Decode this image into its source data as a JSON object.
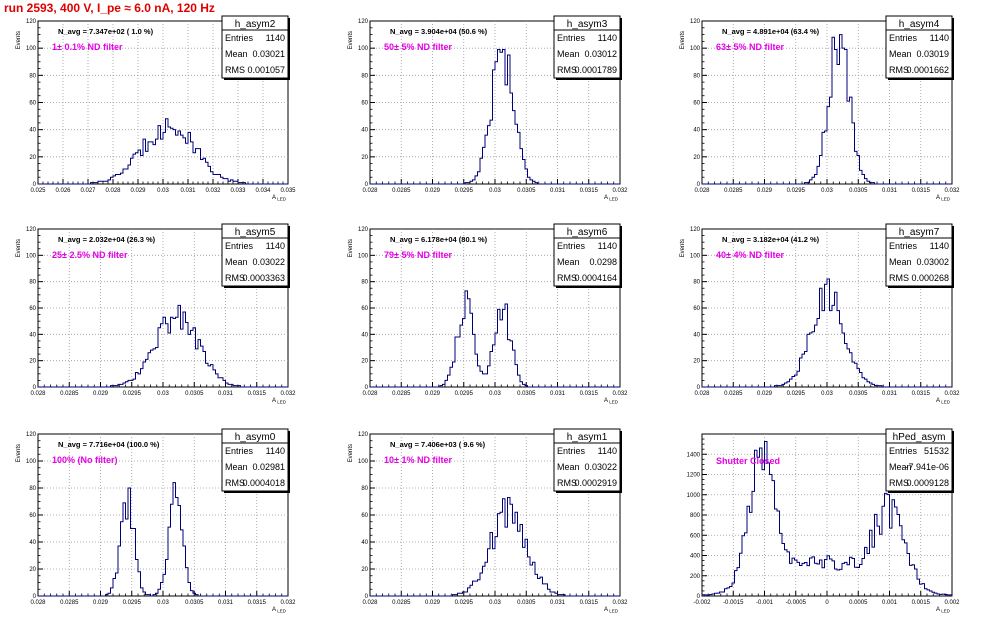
{
  "page": {
    "run_title": "run 2593,   400 V, I_pe ≈ 6.0 nA, 120 Hz"
  },
  "colors": {
    "histogram_line": "#00007a",
    "annotation": "#e600e6",
    "title": "#e00000",
    "grid": "#9a9a9a"
  },
  "chart_data": [
    {
      "type": "bar",
      "name": "h_asym2",
      "title": "h_asym2",
      "ylabel": "Events",
      "xlabel": "A_LED",
      "nf_text": "N_avg = 7.347e+02 ( 1.0 %)",
      "note": "1± 0.1% ND filter",
      "stats": [
        [
          "Entries",
          "1140"
        ],
        [
          "Mean",
          "0.03021"
        ],
        [
          "RMS",
          "0.001057"
        ]
      ],
      "xlim": [
        0.025,
        0.035
      ],
      "ylim": [
        0,
        120
      ],
      "xticks": [
        0.025,
        0.026,
        0.027,
        0.028,
        0.029,
        0.03,
        0.031,
        0.032,
        0.033,
        0.034,
        0.035
      ],
      "xtick_labels": [
        "0.025",
        "0.026",
        "0.027",
        "0.028",
        "0.029",
        "0.03",
        "0.031",
        "0.032",
        "0.033",
        "0.034",
        "0.035"
      ],
      "yticks": [
        0,
        20,
        40,
        60,
        80,
        100,
        120
      ],
      "ytick_labels": [
        "0",
        "20",
        "40",
        "60",
        "80",
        "100",
        "120"
      ],
      "peaks": [
        {
          "center": 0.03021,
          "sigma": 0.00105,
          "height": 43
        }
      ],
      "grid": true
    },
    {
      "type": "bar",
      "name": "h_asym3",
      "title": "h_asym3",
      "ylabel": "Events",
      "xlabel": "A_LED",
      "nf_text": "N_avg = 3.904e+04 (50.6 %)",
      "note": "50± 5% ND filter",
      "stats": [
        [
          "Entries",
          "1140"
        ],
        [
          "Mean",
          "0.03012"
        ],
        [
          "RMS",
          "0.0001789"
        ]
      ],
      "xlim": [
        0.028,
        0.032
      ],
      "ylim": [
        0,
        120
      ],
      "xticks": [
        0.028,
        0.0285,
        0.029,
        0.0295,
        0.03,
        0.0305,
        0.031,
        0.0315,
        0.032
      ],
      "xtick_labels": [
        "0.028",
        "0.0285",
        "0.029",
        "0.0295",
        "0.03",
        "0.0305",
        "0.031",
        "0.0315",
        "0.032"
      ],
      "yticks": [
        0,
        20,
        40,
        60,
        80,
        100,
        120
      ],
      "ytick_labels": [
        "0",
        "20",
        "40",
        "60",
        "80",
        "100",
        "120"
      ],
      "peaks": [
        {
          "center": 0.03012,
          "sigma": 0.00018,
          "height": 98
        }
      ],
      "grid": true
    },
    {
      "type": "bar",
      "name": "h_asym4",
      "title": "h_asym4",
      "ylabel": "Events",
      "xlabel": "A_LED",
      "nf_text": "N_avg = 4.891e+04 (63.4 %)",
      "note": "63± 5% ND filter",
      "stats": [
        [
          "Entries",
          "1140"
        ],
        [
          "Mean",
          "0.03019"
        ],
        [
          "RMS",
          "0.0001662"
        ]
      ],
      "xlim": [
        0.028,
        0.032
      ],
      "ylim": [
        0,
        120
      ],
      "xticks": [
        0.028,
        0.0285,
        0.029,
        0.0295,
        0.03,
        0.0305,
        0.031,
        0.0315,
        0.032
      ],
      "xtick_labels": [
        "0.028",
        "0.0285",
        "0.029",
        "0.0295",
        "0.03",
        "0.0305",
        "0.031",
        "0.0315",
        "0.032"
      ],
      "yticks": [
        0,
        20,
        40,
        60,
        80,
        100,
        120
      ],
      "ytick_labels": [
        "0",
        "20",
        "40",
        "60",
        "80",
        "100",
        "120"
      ],
      "peaks": [
        {
          "center": 0.03019,
          "sigma": 0.000166,
          "height": 107
        }
      ],
      "grid": true
    },
    {
      "type": "bar",
      "name": "h_asym5",
      "title": "h_asym5",
      "ylabel": "Events",
      "xlabel": "A_LED",
      "nf_text": "N_avg = 2.032e+04 (26.3 %)",
      "note": "25± 2.5% ND filter",
      "stats": [
        [
          "Entries",
          "1140"
        ],
        [
          "Mean",
          "0.03022"
        ],
        [
          "RMS",
          "0.0003363"
        ]
      ],
      "xlim": [
        0.028,
        0.032
      ],
      "ylim": [
        0,
        120
      ],
      "xticks": [
        0.028,
        0.0285,
        0.029,
        0.0295,
        0.03,
        0.0305,
        0.031,
        0.0315,
        0.032
      ],
      "xtick_labels": [
        "0.028",
        "0.0285",
        "0.029",
        "0.0295",
        "0.03",
        "0.0305",
        "0.031",
        "0.0315",
        "0.032"
      ],
      "yticks": [
        0,
        20,
        40,
        60,
        80,
        100,
        120
      ],
      "ytick_labels": [
        "0",
        "20",
        "40",
        "60",
        "80",
        "100",
        "120"
      ],
      "peaks": [
        {
          "center": 0.03022,
          "sigma": 0.00034,
          "height": 55
        }
      ],
      "grid": true
    },
    {
      "type": "bar",
      "name": "h_asym6",
      "title": "h_asym6",
      "ylabel": "Events",
      "xlabel": "A_LED",
      "nf_text": "N_avg = 6.178e+04 (80.1 %)",
      "note": "79± 5% ND filter",
      "stats": [
        [
          "Entries",
          "1140"
        ],
        [
          "Mean",
          "0.0298"
        ],
        [
          "RMS",
          "0.0004164"
        ]
      ],
      "xlim": [
        0.028,
        0.032
      ],
      "ylim": [
        0,
        120
      ],
      "xticks": [
        0.028,
        0.0285,
        0.029,
        0.0295,
        0.03,
        0.0305,
        0.031,
        0.0315,
        0.032
      ],
      "xtick_labels": [
        "0.028",
        "0.0285",
        "0.029",
        "0.0295",
        "0.03",
        "0.0305",
        "0.031",
        "0.0315",
        "0.032"
      ],
      "yticks": [
        0,
        20,
        40,
        60,
        80,
        100,
        120
      ],
      "ytick_labels": [
        "0",
        "20",
        "40",
        "60",
        "80",
        "100",
        "120"
      ],
      "peaks": [
        {
          "center": 0.02952,
          "sigma": 0.00013,
          "height": 62
        },
        {
          "center": 0.03012,
          "sigma": 0.00013,
          "height": 60
        }
      ],
      "grid": true
    },
    {
      "type": "bar",
      "name": "h_asym7",
      "title": "h_asym7",
      "ylabel": "Events",
      "xlabel": "A_LED",
      "nf_text": "N_avg = 3.182e+04 (41.2 %)",
      "note": "40± 4% ND filter",
      "stats": [
        [
          "Entries",
          "1140"
        ],
        [
          "Mean",
          "0.03002"
        ],
        [
          "RMS",
          "0.000268"
        ]
      ],
      "xlim": [
        0.028,
        0.032
      ],
      "ylim": [
        0,
        120
      ],
      "xticks": [
        0.028,
        0.0285,
        0.029,
        0.0295,
        0.03,
        0.0305,
        0.031,
        0.0315,
        0.032
      ],
      "xtick_labels": [
        "0.028",
        "0.0285",
        "0.029",
        "0.0295",
        "0.03",
        "0.0305",
        "0.031",
        "0.0315",
        "0.032"
      ],
      "yticks": [
        0,
        20,
        40,
        60,
        80,
        100,
        120
      ],
      "ytick_labels": [
        "0",
        "20",
        "40",
        "60",
        "80",
        "100",
        "120"
      ],
      "peaks": [
        {
          "center": 0.03002,
          "sigma": 0.00027,
          "height": 68
        }
      ],
      "grid": true
    },
    {
      "type": "bar",
      "name": "h_asym0",
      "title": "h_asym0",
      "ylabel": "Events",
      "xlabel": "A_LED",
      "nf_text": "N_avg = 7.716e+04 (100.0 %)",
      "note": "100% (No filter)",
      "stats": [
        [
          "Entries",
          "1140"
        ],
        [
          "Mean",
          "0.02981"
        ],
        [
          "RMS",
          "0.0004018"
        ]
      ],
      "xlim": [
        0.028,
        0.032
      ],
      "ylim": [
        0,
        120
      ],
      "xticks": [
        0.028,
        0.0285,
        0.029,
        0.0295,
        0.03,
        0.0305,
        0.031,
        0.0315,
        0.032
      ],
      "xtick_labels": [
        "0.028",
        "0.0285",
        "0.029",
        "0.0295",
        "0.03",
        "0.0305",
        "0.031",
        "0.0315",
        "0.032"
      ],
      "yticks": [
        0,
        20,
        40,
        60,
        80,
        100,
        120
      ],
      "ytick_labels": [
        "0",
        "20",
        "40",
        "60",
        "80",
        "100",
        "120"
      ],
      "peaks": [
        {
          "center": 0.02943,
          "sigma": 0.00011,
          "height": 68
        },
        {
          "center": 0.0302,
          "sigma": 0.00011,
          "height": 75
        }
      ],
      "grid": true
    },
    {
      "type": "bar",
      "name": "h_asym1",
      "title": "h_asym1",
      "ylabel": "Events",
      "xlabel": "A_LED",
      "nf_text": "N_avg = 7.406e+03 ( 9.6 %)",
      "note": "10± 1% ND filter",
      "stats": [
        [
          "Entries",
          "1140"
        ],
        [
          "Mean",
          "0.03022"
        ],
        [
          "RMS",
          "0.0002919"
        ]
      ],
      "xlim": [
        0.028,
        0.032
      ],
      "ylim": [
        0,
        120
      ],
      "xticks": [
        0.028,
        0.0285,
        0.029,
        0.0295,
        0.03,
        0.0305,
        0.031,
        0.0315,
        0.032
      ],
      "xtick_labels": [
        "0.028",
        "0.0285",
        "0.029",
        "0.0295",
        "0.03",
        "0.0305",
        "0.031",
        "0.0315",
        "0.032"
      ],
      "yticks": [
        0,
        20,
        40,
        60,
        80,
        100,
        120
      ],
      "ytick_labels": [
        "0",
        "20",
        "40",
        "60",
        "80",
        "100",
        "120"
      ],
      "peaks": [
        {
          "center": 0.03022,
          "sigma": 0.00029,
          "height": 62
        }
      ],
      "grid": true
    },
    {
      "type": "bar",
      "name": "hPed_asym",
      "title": "hPed_asym",
      "ylabel": "",
      "xlabel": "A_LED",
      "nf_text": "",
      "note": "Shutter Closed",
      "stats": [
        [
          "Entries",
          "51532"
        ],
        [
          "Mean",
          "-7.941e-06"
        ],
        [
          "RMS",
          "0.0009128"
        ]
      ],
      "xlim": [
        -0.002,
        0.002
      ],
      "ylim": [
        0,
        1600
      ],
      "xticks": [
        -0.002,
        -0.0015,
        -0.001,
        -0.0005,
        0,
        0.0005,
        0.001,
        0.0015,
        0.002
      ],
      "xtick_labels": [
        "-0.002",
        "-0.0015",
        "-0.001",
        "-0.0005",
        "0",
        "0.0005",
        "0.001",
        "0.0015",
        "0.002"
      ],
      "yticks": [
        0,
        200,
        400,
        600,
        800,
        1000,
        1200,
        1400
      ],
      "ytick_labels": [
        "0",
        "200",
        "400",
        "600",
        "800",
        "1000",
        "1200",
        "1400"
      ],
      "peaks": [
        {
          "center": -0.00105,
          "sigma": 0.00021,
          "height": 1180
        },
        {
          "center": 0.001,
          "sigma": 0.00025,
          "height": 700
        },
        {
          "center": 0.0,
          "sigma": 0.00075,
          "height": 330
        }
      ],
      "grid": true
    }
  ]
}
